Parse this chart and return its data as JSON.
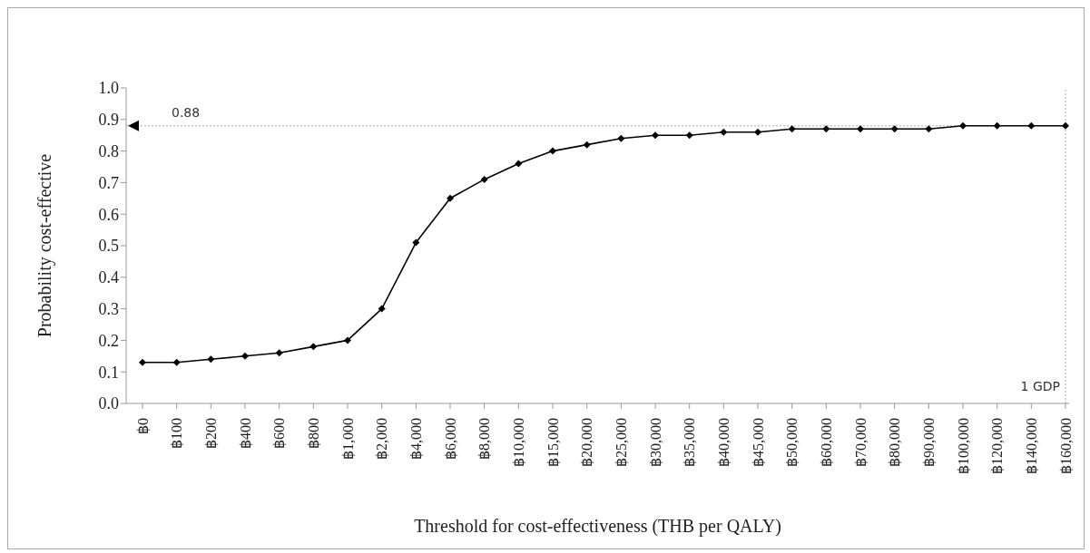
{
  "chart_data": {
    "type": "line",
    "xlabel": "Threshold for cost-effectiveness  (THB per QALY)",
    "ylabel": "Probability  cost-effective",
    "categories": [
      "฿0",
      "฿100",
      "฿200",
      "฿400",
      "฿600",
      "฿800",
      "฿1,000",
      "฿2,000",
      "฿4,000",
      "฿6,000",
      "฿8,000",
      "฿10,000",
      "฿15,000",
      "฿20,000",
      "฿25,000",
      "฿30,000",
      "฿35,000",
      "฿40,000",
      "฿45,000",
      "฿50,000",
      "฿60,000",
      "฿70,000",
      "฿80,000",
      "฿90,000",
      "฿100,000",
      "฿120,000",
      "฿140,000",
      "฿160,000"
    ],
    "series": [
      {
        "color": "#000000",
        "values": [
          0.13,
          0.13,
          0.14,
          0.15,
          0.16,
          0.18,
          0.2,
          0.3,
          0.51,
          0.65,
          0.71,
          0.76,
          0.8,
          0.82,
          0.84,
          0.85,
          0.85,
          0.86,
          0.86,
          0.87,
          0.87,
          0.87,
          0.87,
          0.87,
          0.88,
          0.88,
          0.88,
          0.88
        ]
      }
    ],
    "ylim": [
      0,
      1
    ],
    "yticks": [
      {
        "value": 0,
        "label": "0.0"
      },
      {
        "value": 0.1,
        "label": "0.1"
      },
      {
        "value": 0.2,
        "label": "0.2"
      },
      {
        "value": 0.3,
        "label": "0.3"
      },
      {
        "value": 0.4,
        "label": "0.4"
      },
      {
        "value": 0.5,
        "label": "0.5"
      },
      {
        "value": 0.6,
        "label": "0.6"
      },
      {
        "value": 0.7,
        "label": "0.7"
      },
      {
        "value": 0.8,
        "label": "0.8"
      },
      {
        "value": 0.9,
        "label": "0.9"
      },
      {
        "value": 1,
        "label": "1.0"
      }
    ],
    "ref_lines": [
      {
        "axis": "y",
        "value": 0.88,
        "label": "0.88",
        "color": "#b0b0b0",
        "line_style": "dotted"
      },
      {
        "axis": "x",
        "value": "฿160,000",
        "label": "1 GDP",
        "color": "#b0b0b0",
        "line_style": "dotted"
      }
    ],
    "grid": false,
    "legend": false,
    "marker": "diamond",
    "line_style": "solid"
  }
}
